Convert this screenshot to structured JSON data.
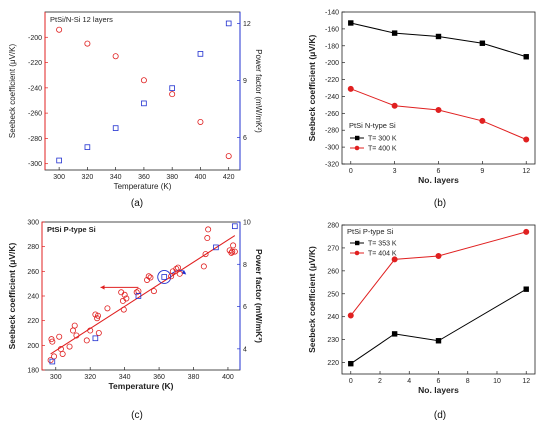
{
  "chart_data": [
    {
      "id": "a",
      "caption": "(a)",
      "type": "scatter",
      "title": "PtSi/N-Si 12 layers",
      "xlabel": "Temperature (K)",
      "ylabel": "Seebeck coefficient (μV/K)",
      "y2label": "Power factor (mW/mK²)",
      "xlim": [
        290,
        428
      ],
      "ylim": [
        -305,
        -180
      ],
      "y2lim": [
        4.3,
        12.6
      ],
      "xticks": [
        "300",
        "320",
        "340",
        "360",
        "380",
        "400",
        "420"
      ],
      "yticks": [
        "-200",
        "-220",
        "-240",
        "-260",
        "-280",
        "-300"
      ],
      "y2ticks": [
        "6",
        "9",
        "12"
      ],
      "series": [
        {
          "marker": "circle",
          "axis": "left",
          "color": "#e02020",
          "x": [
            300,
            320,
            340,
            360,
            380,
            400,
            420
          ],
          "y": [
            -194,
            -205,
            -215,
            -234,
            -245,
            -267,
            -294
          ]
        },
        {
          "marker": "square",
          "axis": "right",
          "color": "#2030d0",
          "x": [
            300,
            320,
            340,
            360,
            380,
            400,
            420
          ],
          "y": [
            4.8,
            5.5,
            6.5,
            7.8,
            8.6,
            10.4,
            12.0
          ]
        }
      ]
    },
    {
      "id": "b",
      "caption": "(b)",
      "type": "line",
      "title": "PtSi N-type Si",
      "xlabel": "No. layers",
      "ylabel": "Seebeck coefficient (μV/K)",
      "xlim": [
        -0.6,
        12.6
      ],
      "ylim": [
        -320,
        -140
      ],
      "xticks": [
        "0",
        "3",
        "6",
        "9",
        "12"
      ],
      "yticks": [
        "-140",
        "-160",
        "-180",
        "-200",
        "-220",
        "-240",
        "-260",
        "-280",
        "-300",
        "-320"
      ],
      "legend": "bottom-left",
      "series": [
        {
          "name": "T= 300 K",
          "marker": "square",
          "color": "#000000",
          "x": [
            0,
            3,
            6,
            9,
            12
          ],
          "y": [
            -153,
            -165,
            -169,
            -177,
            -193
          ]
        },
        {
          "name": "T= 400 K",
          "marker": "circle",
          "color": "#e02020",
          "x": [
            0,
            3,
            6,
            9,
            12
          ],
          "y": [
            -231,
            -251,
            -256,
            -269,
            -291
          ]
        }
      ]
    },
    {
      "id": "c",
      "caption": "(c)",
      "type": "scatter",
      "title": "PtSi P-type Si",
      "xlabel": "Temperature (K)",
      "ylabel": "Seebeck coefficient (μV/K)",
      "y2label": "Power factor (mW/mK²)",
      "xlim": [
        292,
        407
      ],
      "ylim": [
        180,
        300
      ],
      "y2lim": [
        3,
        10
      ],
      "xticks": [
        "300",
        "320",
        "340",
        "360",
        "380",
        "400"
      ],
      "yticks": [
        "180",
        "200",
        "220",
        "240",
        "260",
        "280",
        "300"
      ],
      "y2ticks": [
        "4",
        "6",
        "8",
        "10"
      ],
      "fit": {
        "x": [
          297,
          404
        ],
        "y": [
          193,
          289
        ]
      },
      "series": [
        {
          "marker": "circle",
          "axis": "left",
          "color": "#e02020",
          "x": [
            297,
            297.5,
            298,
            299,
            302,
            303,
            304,
            308,
            310,
            311,
            312,
            318,
            320,
            323,
            324,
            324.5,
            325,
            330,
            338,
            339,
            339.5,
            340,
            341,
            347,
            348,
            353,
            354,
            355,
            357,
            367,
            368,
            370,
            371,
            372,
            386,
            387,
            388,
            388.5,
            401,
            402,
            402.5,
            403,
            404
          ],
          "y": [
            188,
            205,
            203,
            191,
            207,
            197,
            193,
            199,
            212,
            216,
            208,
            204,
            212,
            225,
            222,
            224,
            210,
            230,
            243,
            236,
            229,
            241,
            238,
            243,
            244,
            253,
            256,
            255,
            244,
            256,
            260,
            262,
            263,
            258,
            264,
            274,
            287,
            294,
            277,
            275,
            276,
            281,
            276
          ]
        },
        {
          "marker": "square",
          "axis": "right",
          "color": "#2030d0",
          "x": [
            298,
            323,
            348,
            363,
            393,
            404
          ],
          "y": [
            3.4,
            4.5,
            6.5,
            7.4,
            8.8,
            9.8
          ]
        }
      ]
    },
    {
      "id": "d",
      "caption": "(d)",
      "type": "line",
      "title": "PtSi P-type Si",
      "xlabel": "No. layers",
      "ylabel": "Seebeck coefficient (μV/K)",
      "xlim": [
        -0.6,
        12.6
      ],
      "ylim": [
        215,
        280
      ],
      "xticks": [
        "0",
        "2",
        "4",
        "6",
        "8",
        "10",
        "12"
      ],
      "yticks": [
        "220",
        "230",
        "240",
        "250",
        "260",
        "270",
        "280"
      ],
      "legend": "top-left",
      "series": [
        {
          "name": "T= 353 K",
          "marker": "square",
          "color": "#000000",
          "x": [
            0,
            3,
            6,
            12
          ],
          "y": [
            219.5,
            232.5,
            229.5,
            252
          ]
        },
        {
          "name": "T= 404 K",
          "marker": "circle",
          "color": "#e02020",
          "x": [
            0,
            3,
            6,
            12
          ],
          "y": [
            240.5,
            265,
            266.5,
            277
          ]
        }
      ]
    }
  ]
}
